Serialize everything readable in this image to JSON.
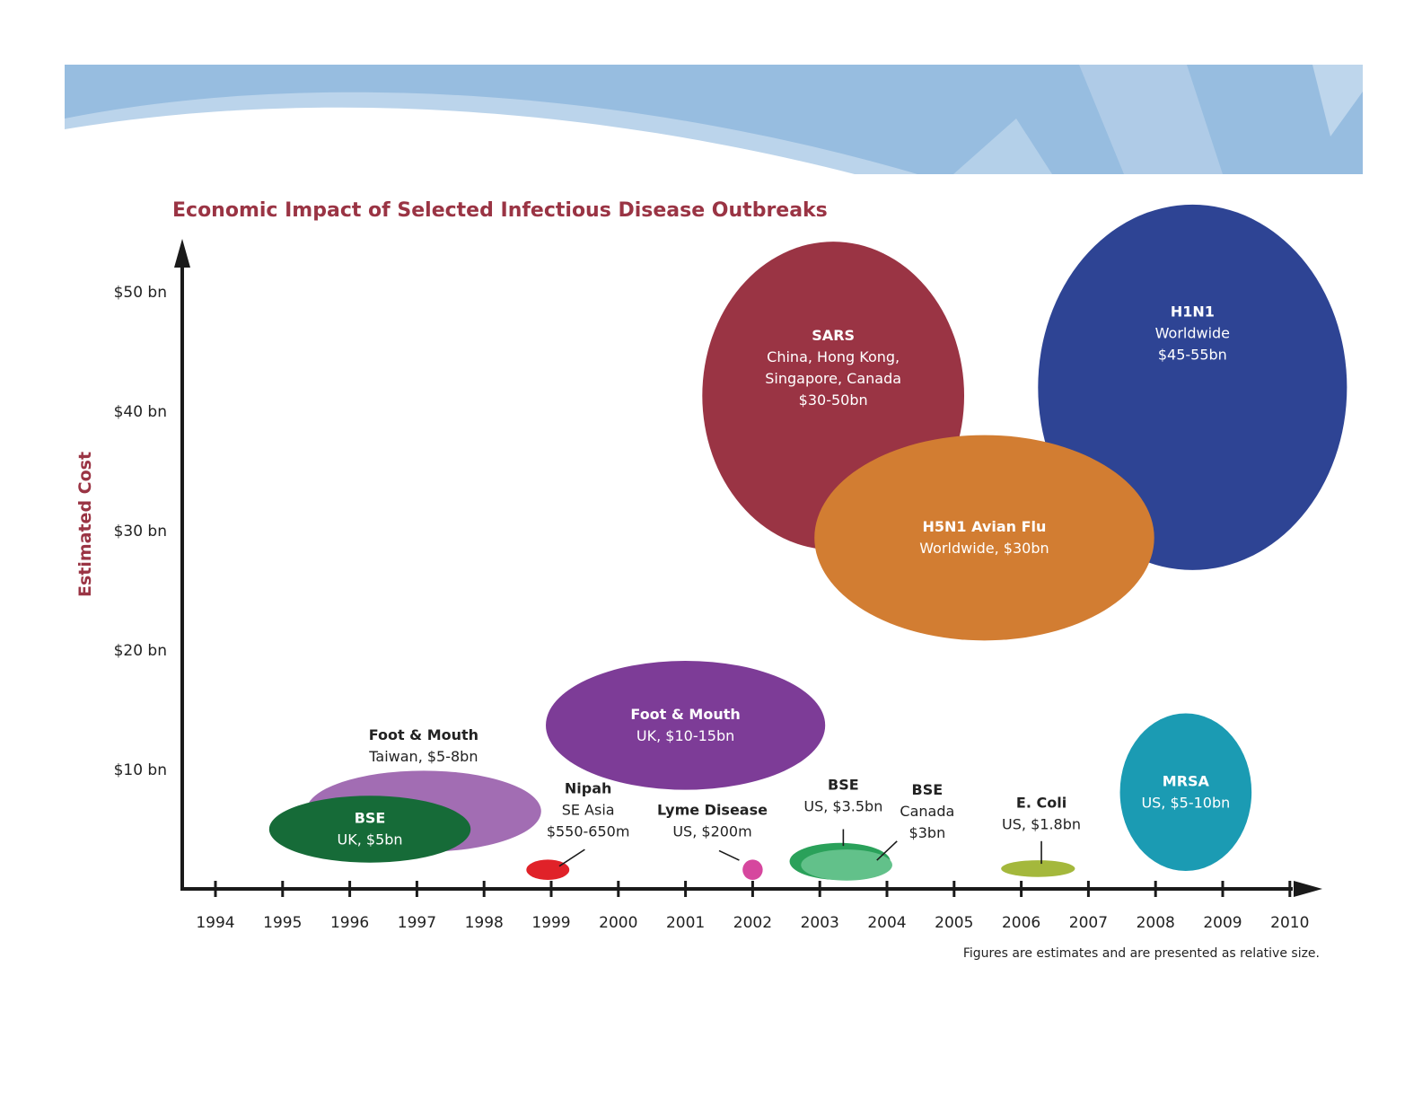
{
  "colors": {
    "title": "#9a3444",
    "axis": "#1a1a1a",
    "banner_light": "#c8dcef",
    "banner_mid": "#97bde0"
  },
  "chart_data": {
    "type": "bubble",
    "title": "Economic Impact of Selected Infectious Disease Outbreaks",
    "ylabel": "Estimated Cost",
    "xlabel": "",
    "x_ticks": [
      "1994",
      "1995",
      "1996",
      "1997",
      "1998",
      "1999",
      "2000",
      "2001",
      "2002",
      "2003",
      "2004",
      "2005",
      "2006",
      "2007",
      "2008",
      "2009",
      "2010"
    ],
    "y_ticks": [
      "$10 bn",
      "$20 bn",
      "$30 bn",
      "$40 bn",
      "$50 bn"
    ],
    "xlim": [
      1993.5,
      2010.5
    ],
    "ylim": [
      0,
      53
    ],
    "footnote": "Figures are estimates and are presented as relative size.",
    "bubbles": [
      {
        "name": "Foot & Mouth",
        "detail": [
          "Taiwan, $5-8bn"
        ],
        "year": 1997.1,
        "cost": 6.5,
        "rx": 1.75,
        "ry": 3.4,
        "color": "#a26db3",
        "label_inside": false,
        "label_year": 1997.1,
        "label_cost": 12.5,
        "label_color": "#222222"
      },
      {
        "name": "BSE",
        "detail": [
          "UK, $5bn"
        ],
        "year": 1996.3,
        "cost": 5.0,
        "rx": 1.5,
        "ry": 2.8,
        "color": "#166b38",
        "label_inside": true,
        "label_color": "#ffffff"
      },
      {
        "name": "Foot & Mouth",
        "detail": [
          "UK, $10-15bn"
        ],
        "year": 2001.0,
        "cost": 13.7,
        "rx": 2.08,
        "ry": 5.4,
        "color": "#7d3c97",
        "label_inside": true,
        "label_color": "#ffffff"
      },
      {
        "name": "Nipah",
        "detail": [
          "SE Asia",
          "$550-650m"
        ],
        "year": 1998.95,
        "cost": 1.6,
        "rx": 0.32,
        "ry": 0.85,
        "color": "#e02229",
        "label_inside": false,
        "label_year": 1999.55,
        "label_cost": 8.0,
        "label_color": "#222222",
        "leader": [
          1999.12,
          1.9,
          1999.5,
          3.3
        ]
      },
      {
        "name": "Lyme Disease",
        "detail": [
          "US, $200m"
        ],
        "year": 2002.0,
        "cost": 1.6,
        "rx": 0.15,
        "ry": 0.85,
        "color": "#d6479e",
        "label_inside": false,
        "label_year": 2001.4,
        "label_cost": 6.2,
        "label_color": "#222222",
        "leader": [
          2001.8,
          2.4,
          2001.5,
          3.2
        ]
      },
      {
        "name": "BSE",
        "detail": [
          "US, $3.5bn"
        ],
        "year": 2003.3,
        "cost": 2.3,
        "rx": 0.75,
        "ry": 1.55,
        "color": "#2aa15a",
        "label_inside": false,
        "label_year": 2003.35,
        "label_cost": 8.3,
        "label_color": "#222222",
        "leader": [
          2003.35,
          3.6,
          2003.35,
          5.0
        ]
      },
      {
        "name": "BSE",
        "detail": [
          "Canada",
          "$3bn"
        ],
        "year": 2003.4,
        "cost": 2.0,
        "rx": 0.68,
        "ry": 1.3,
        "color": "#62c18a",
        "label_inside": false,
        "label_year": 2004.6,
        "label_cost": 7.9,
        "label_color": "#222222",
        "leader": [
          2003.85,
          2.4,
          2004.15,
          4.0
        ]
      },
      {
        "name": "E. Coli",
        "detail": [
          "US, $1.8bn"
        ],
        "year": 2006.25,
        "cost": 1.7,
        "rx": 0.55,
        "ry": 0.7,
        "color": "#a4b83c",
        "label_inside": false,
        "label_year": 2006.3,
        "label_cost": 6.8,
        "label_color": "#222222",
        "leader": [
          2006.3,
          2.1,
          2006.3,
          4.0
        ]
      },
      {
        "name": "MRSA",
        "detail": [
          "US, $5-10bn"
        ],
        "year": 2008.45,
        "cost": 8.1,
        "rx": 0.98,
        "ry": 6.6,
        "color": "#1b9bb3",
        "label_inside": true,
        "label_color": "#ffffff"
      },
      {
        "name": "SARS",
        "detail": [
          "China, Hong Kong,",
          "Singapore, Canada",
          "$30-50bn"
        ],
        "year": 2003.2,
        "cost": 41.3,
        "rx": 1.95,
        "ry": 12.9,
        "color": "#9a3444",
        "label_inside": true,
        "label_color": "#ffffff",
        "label_shift": 2.3
      },
      {
        "name": "H1N1",
        "detail": [
          "Worldwide",
          "$45-55bn"
        ],
        "year": 2008.55,
        "cost": 42.0,
        "rx": 2.3,
        "ry": 15.3,
        "color": "#2e4494",
        "label_inside": true,
        "label_color": "#ffffff",
        "label_shift": 4.5
      },
      {
        "name": "H5N1 Avian Flu",
        "detail": [
          "Worldwide, $30bn"
        ],
        "year": 2005.45,
        "cost": 29.4,
        "rx": 2.53,
        "ry": 8.6,
        "color": "#d27d32",
        "label_inside": true,
        "label_color": "#ffffff"
      }
    ]
  }
}
